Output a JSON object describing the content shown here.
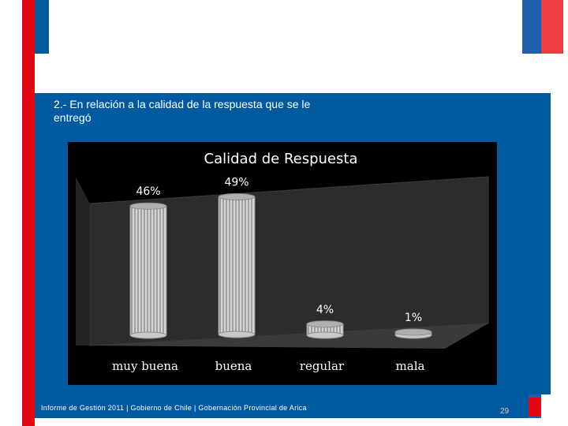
{
  "slide": {
    "question": "2.- En relación a la calidad de la respuesta que se le entregó",
    "footer": "Informe de Gestión 2011 | Gobierno de Chile | Gobernación Provincial de Arica",
    "page_number": "29"
  },
  "colors": {
    "brand_red": "#e30613",
    "brand_blue": "#005aa0",
    "flag_blue": "#1f5fb0",
    "flag_red": "#ef3e42",
    "chart_background": "#000000",
    "bar_fill": "#d4d4d4"
  },
  "chart_data": {
    "type": "bar",
    "title": "Calidad de Respuesta",
    "categories": [
      "muy buena",
      "buena",
      "regular",
      "mala"
    ],
    "values": [
      46,
      49,
      4,
      1
    ],
    "data_labels": [
      "46%",
      "49%",
      "4%",
      "1%"
    ],
    "unit": "%",
    "ylim": [
      0,
      50
    ],
    "legend": "none",
    "grid": false,
    "style": "3d-cylinder"
  }
}
